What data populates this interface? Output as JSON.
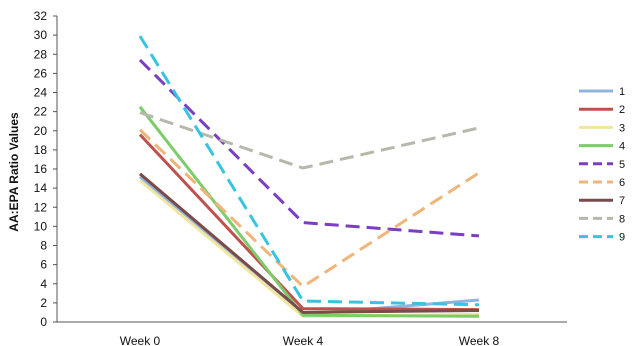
{
  "chart_data": {
    "type": "line",
    "title": "",
    "xlabel": "",
    "ylabel": "AA:EPA Ratio Values",
    "categories": [
      "Week 0",
      "Week 4",
      "Week 8"
    ],
    "ylim": [
      0,
      32
    ],
    "yticks": [
      0,
      2,
      4,
      6,
      8,
      10,
      12,
      14,
      16,
      18,
      20,
      22,
      24,
      26,
      28,
      30,
      32
    ],
    "grid": false,
    "legend_position": "right",
    "series": [
      {
        "name": "1",
        "values": [
          15.2,
          0.8,
          2.3
        ],
        "color": "#8fb4de",
        "dashed": false
      },
      {
        "name": "2",
        "values": [
          19.6,
          1.4,
          1.3
        ],
        "color": "#c0504d",
        "dashed": false
      },
      {
        "name": "3",
        "values": [
          14.8,
          0.6,
          0.8
        ],
        "color": "#f0e6a0",
        "dashed": false
      },
      {
        "name": "4",
        "values": [
          22.5,
          0.7,
          0.6
        ],
        "color": "#7ccc6a",
        "dashed": false
      },
      {
        "name": "5",
        "values": [
          27.4,
          10.4,
          9.0
        ],
        "color": "#7a3fc0",
        "dashed": true
      },
      {
        "name": "6",
        "values": [
          20.1,
          3.7,
          15.6
        ],
        "color": "#f0b57a",
        "dashed": true
      },
      {
        "name": "7",
        "values": [
          15.5,
          1.0,
          1.2
        ],
        "color": "#7b4a4a",
        "dashed": false
      },
      {
        "name": "8",
        "values": [
          21.9,
          16.1,
          20.3
        ],
        "color": "#b5b8aa",
        "dashed": true
      },
      {
        "name": "9",
        "values": [
          29.9,
          2.2,
          1.8
        ],
        "color": "#38c4e0",
        "dashed": true
      }
    ]
  }
}
